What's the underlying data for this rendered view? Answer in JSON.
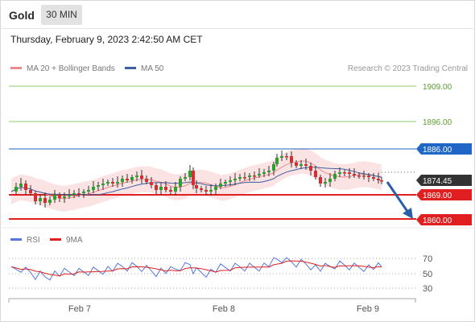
{
  "header": {
    "title": "Gold",
    "timeframe": "30 MIN"
  },
  "datetime": "Thursday, February 9, 2023 2:42:50 AM CET",
  "legend": {
    "bollinger_label": "MA 20 + Bollinger Bands",
    "ma50_label": "MA 50",
    "credit": "Research © 2023 Trading Central"
  },
  "levels": {
    "r3": "1909.00",
    "r2": "1896.00",
    "r1": "1886.00",
    "last": "1874.45",
    "s1": "1869.00",
    "s2": "1860.00"
  },
  "rsi_legend": {
    "rsi_label": "RSI",
    "ma_label": "9MA"
  },
  "rsi_axis": [
    "70",
    "50",
    "30"
  ],
  "x_axis": [
    "Feb 7",
    "Feb 8",
    "Feb 9"
  ],
  "colors": {
    "resistance_green": "#8ec96e",
    "pivot_blue": "#1f66c7",
    "support_red": "#e02020",
    "bollinger_fill": "#fbdada",
    "ma20_line": "#f08a8a",
    "ma50_line": "#3b5fa0",
    "candle_up": "#2e9e2e",
    "candle_down": "#d23030",
    "rsi_line": "#5577dd",
    "rsi_ma": "#e02020",
    "arrow": "#2a5fa8"
  },
  "chart_data": {
    "type": "candlestick",
    "price_levels": [
      1909.0,
      1896.0,
      1886.0,
      1874.45,
      1869.0,
      1860.0
    ],
    "projection": "down toward 1860.00"
  }
}
